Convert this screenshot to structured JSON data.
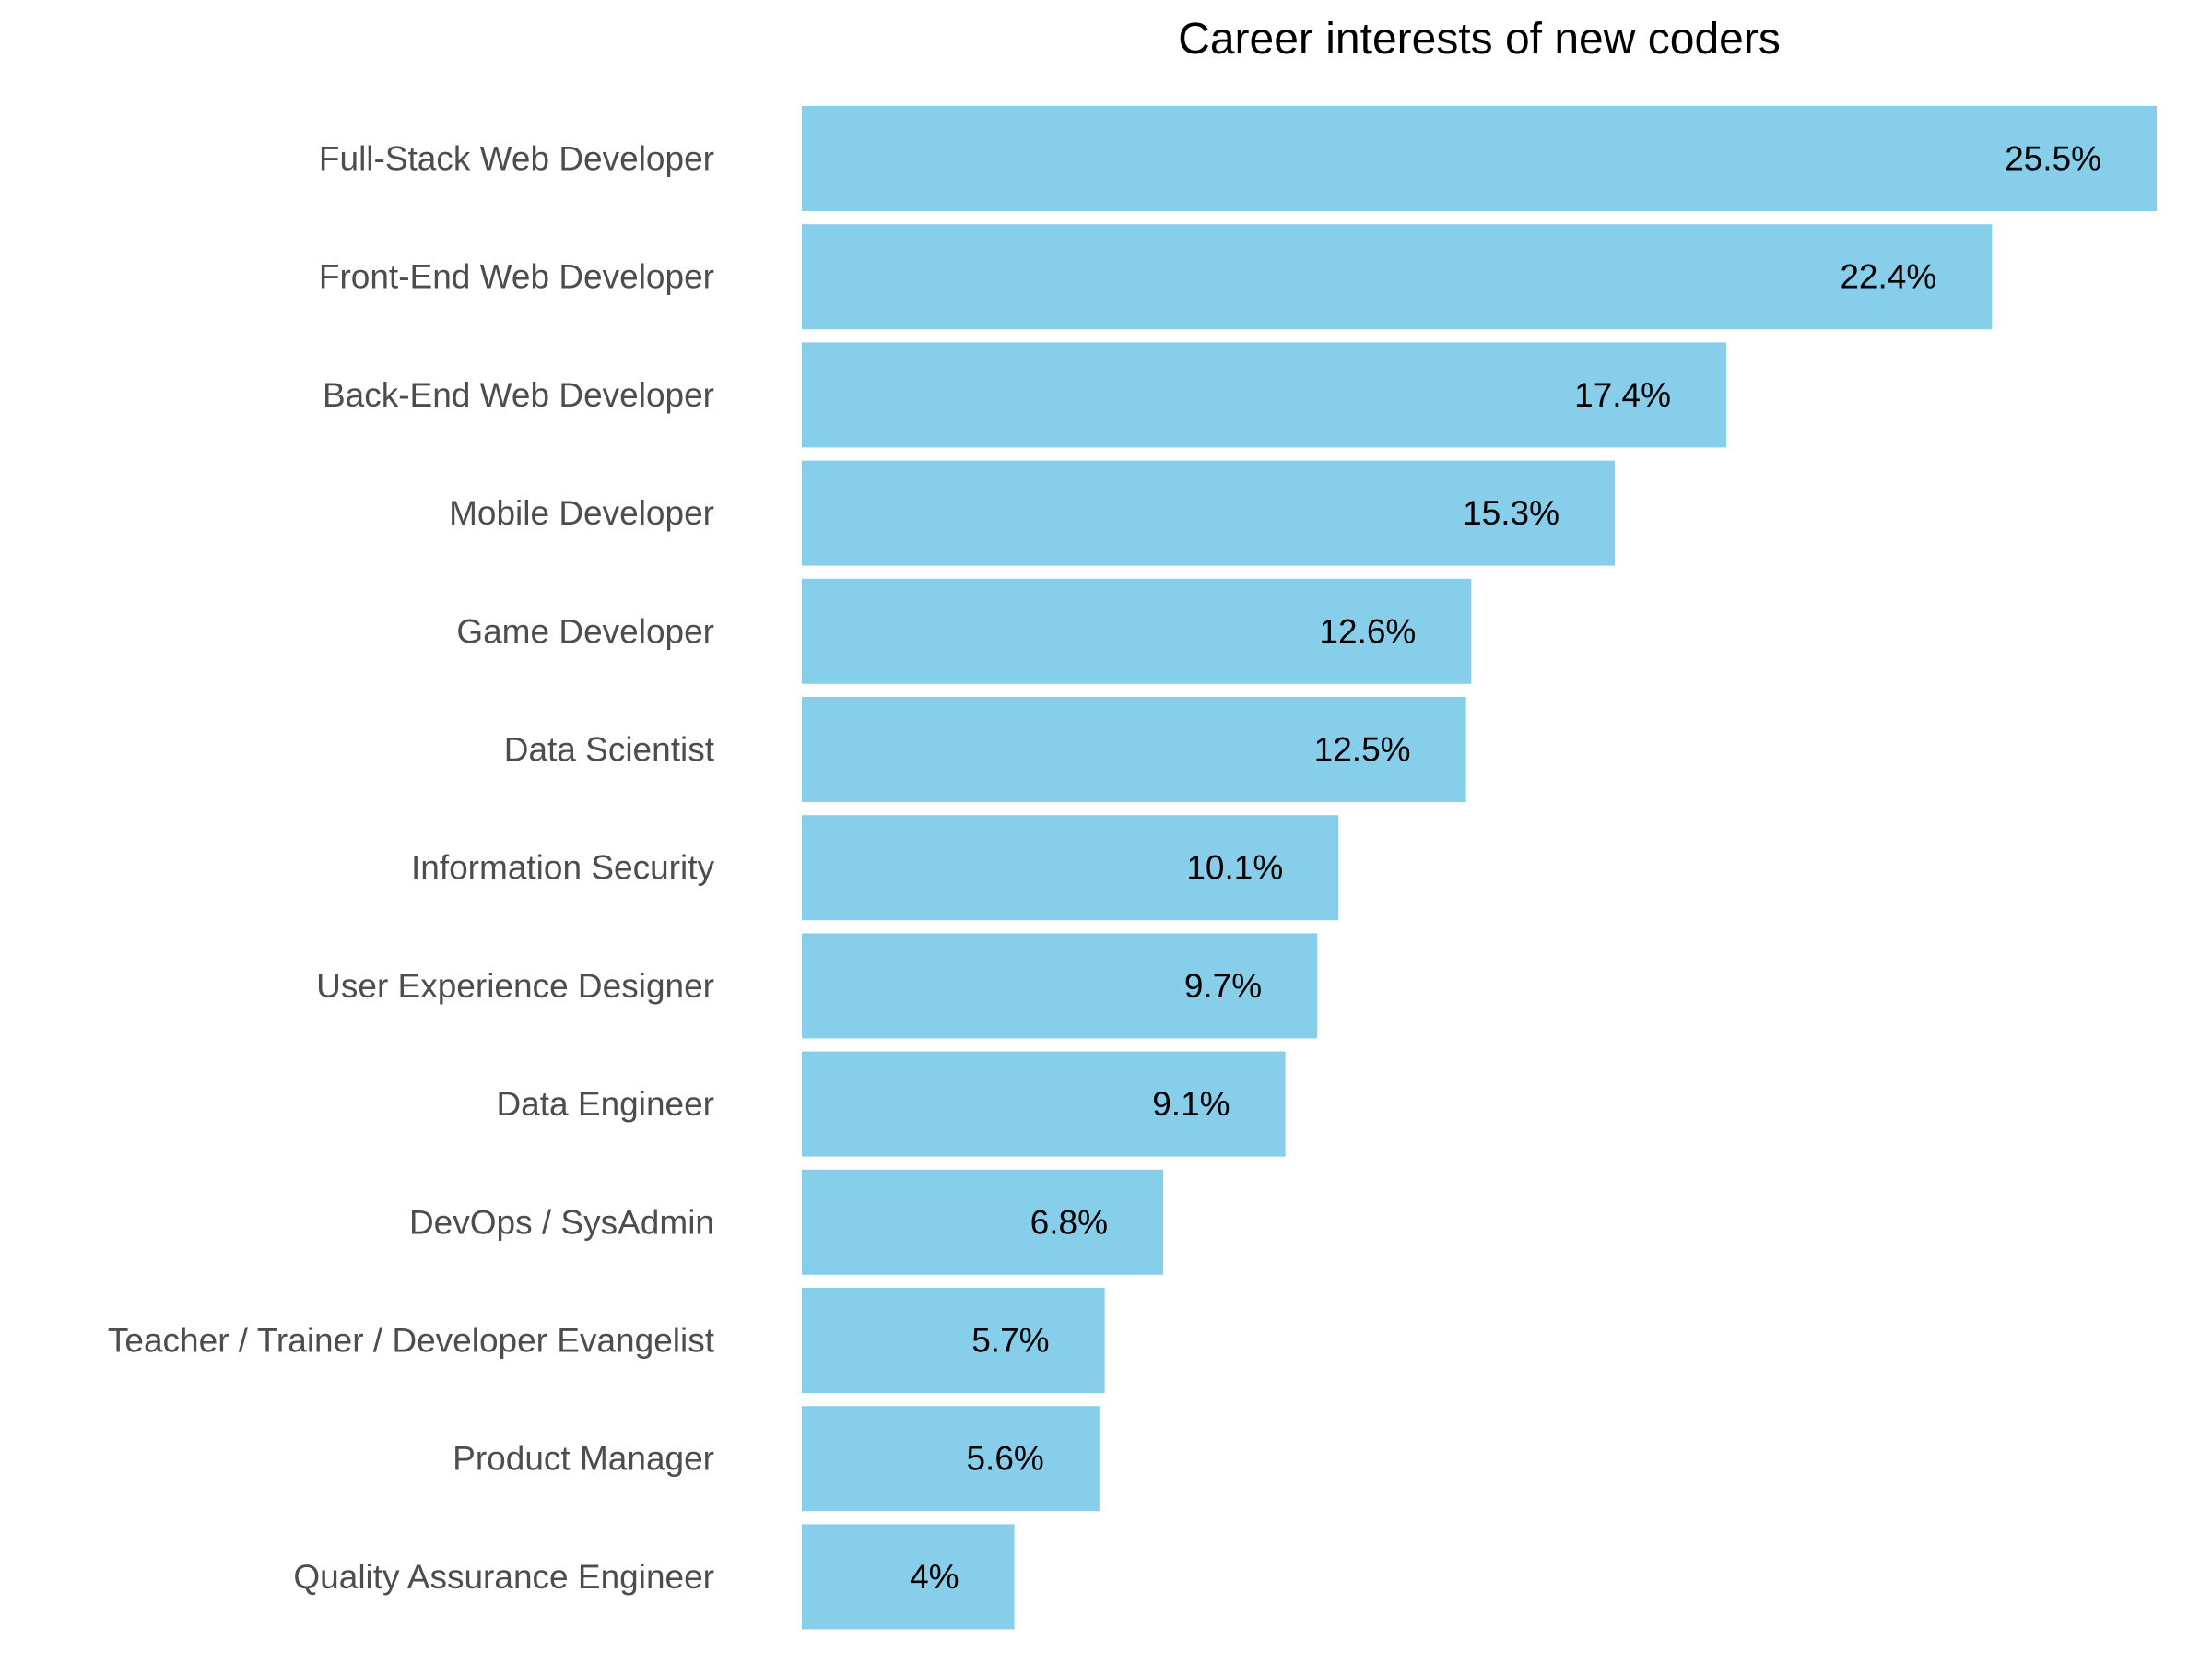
{
  "chart_data": {
    "type": "bar",
    "orientation": "horizontal",
    "title": "Career interests of new coders",
    "xlabel": "",
    "ylabel": "",
    "xlim": [
      0,
      25.5
    ],
    "grid": false,
    "legend": "none",
    "bar_color": "#87CEEB",
    "categories": [
      "Full-Stack Web Developer",
      "Front-End Web Developer",
      "Back-End Web Developer",
      "Mobile Developer",
      "Game Developer",
      "Data Scientist",
      "Information Security",
      "User Experience Designer",
      "Data Engineer",
      "DevOps / SysAdmin",
      "Teacher / Trainer / Developer Evangelist",
      "Product Manager",
      "Quality Assurance Engineer"
    ],
    "values": [
      25.5,
      22.4,
      17.4,
      15.3,
      12.6,
      12.5,
      10.1,
      9.7,
      9.1,
      6.8,
      5.7,
      5.6,
      4
    ],
    "data_labels": [
      "25.5%",
      "22.4%",
      "17.4%",
      "15.3%",
      "12.6%",
      "12.5%",
      "10.1%",
      "9.7%",
      "9.1%",
      "6.8%",
      "5.7%",
      "5.6%",
      "4%"
    ]
  }
}
